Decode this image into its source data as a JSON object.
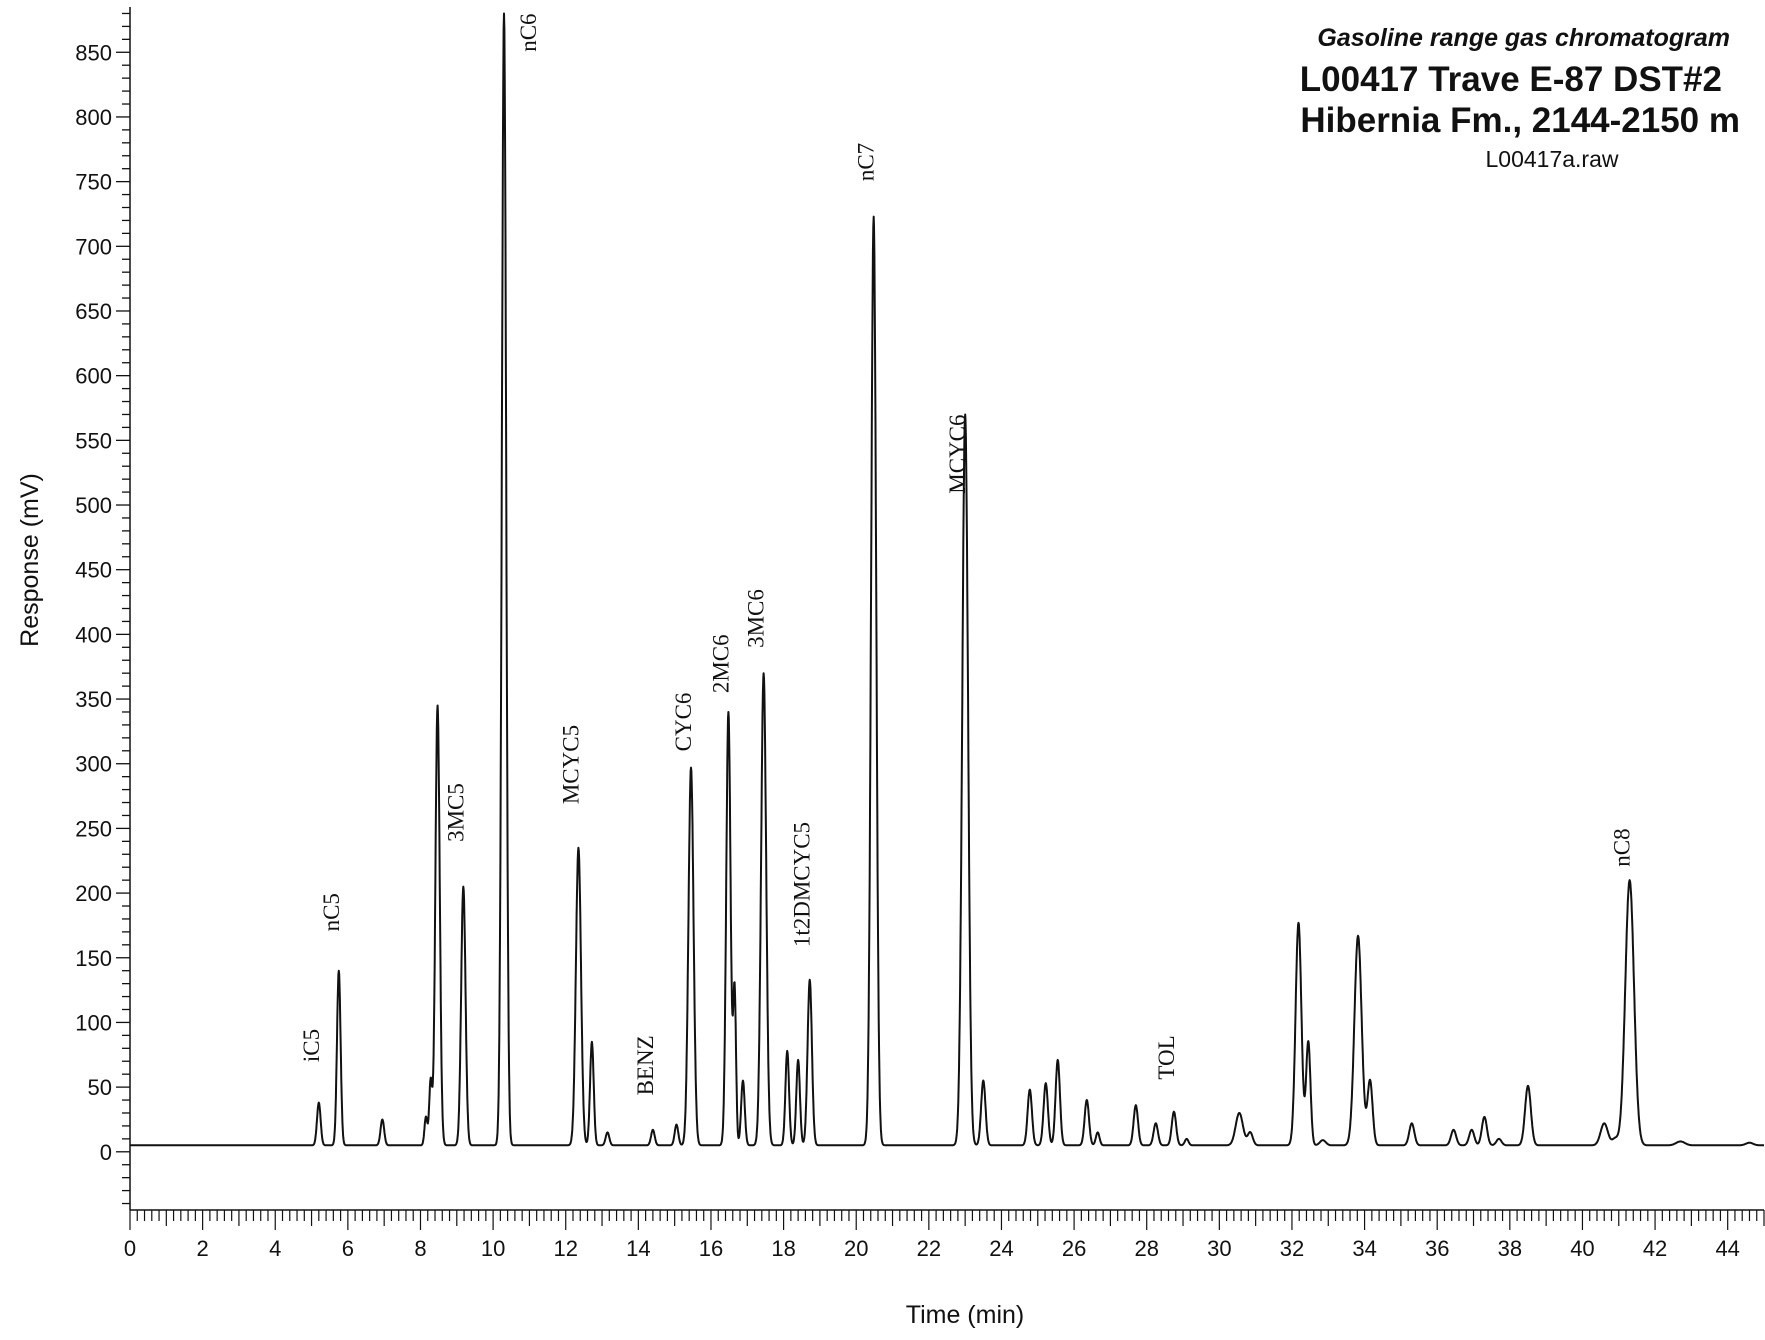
{
  "chart_data": {
    "type": "line",
    "title_lines": [
      "Gasoline range gas chromatogram",
      "L00417 Trave E-87 DST#2",
      "Hibernia Fm., 2144-2150 m"
    ],
    "subtitle": "L00417a.raw",
    "xlabel": "Time (min)",
    "ylabel": "Response (mV)",
    "xlim": [
      0,
      45
    ],
    "ylim": [
      -45,
      885
    ],
    "x_ticks": [
      0,
      2,
      4,
      6,
      8,
      10,
      12,
      14,
      16,
      18,
      20,
      22,
      24,
      26,
      28,
      30,
      32,
      34,
      36,
      38,
      40,
      42,
      44
    ],
    "y_ticks": [
      0,
      50,
      100,
      150,
      200,
      250,
      300,
      350,
      400,
      450,
      500,
      550,
      600,
      650,
      700,
      750,
      800,
      850
    ],
    "baseline": 5,
    "grid": false,
    "peaks": [
      {
        "t": 5.2,
        "h": 33,
        "w": 0.05
      },
      {
        "t": 5.75,
        "h": 135,
        "w": 0.05
      },
      {
        "t": 6.95,
        "h": 20,
        "w": 0.05
      },
      {
        "t": 8.15,
        "h": 22,
        "w": 0.04
      },
      {
        "t": 8.28,
        "h": 50,
        "w": 0.04
      },
      {
        "t": 8.47,
        "h": 340,
        "w": 0.06
      },
      {
        "t": 9.18,
        "h": 200,
        "w": 0.06
      },
      {
        "t": 10.3,
        "h": 875,
        "w": 0.06
      },
      {
        "t": 12.35,
        "h": 230,
        "w": 0.07
      },
      {
        "t": 12.72,
        "h": 80,
        "w": 0.05
      },
      {
        "t": 13.15,
        "h": 10,
        "w": 0.05
      },
      {
        "t": 14.4,
        "h": 12,
        "w": 0.05
      },
      {
        "t": 15.05,
        "h": 16,
        "w": 0.05
      },
      {
        "t": 15.45,
        "h": 292,
        "w": 0.07
      },
      {
        "t": 16.48,
        "h": 335,
        "w": 0.06
      },
      {
        "t": 16.65,
        "h": 120,
        "w": 0.04
      },
      {
        "t": 16.88,
        "h": 50,
        "w": 0.05
      },
      {
        "t": 17.45,
        "h": 365,
        "w": 0.07
      },
      {
        "t": 18.1,
        "h": 73,
        "w": 0.05
      },
      {
        "t": 18.4,
        "h": 66,
        "w": 0.05
      },
      {
        "t": 18.72,
        "h": 128,
        "w": 0.06
      },
      {
        "t": 20.48,
        "h": 718,
        "w": 0.07
      },
      {
        "t": 23.0,
        "h": 565,
        "w": 0.08
      },
      {
        "t": 23.5,
        "h": 50,
        "w": 0.06
      },
      {
        "t": 24.78,
        "h": 43,
        "w": 0.06
      },
      {
        "t": 25.22,
        "h": 48,
        "w": 0.06
      },
      {
        "t": 25.55,
        "h": 66,
        "w": 0.06
      },
      {
        "t": 26.35,
        "h": 35,
        "w": 0.06
      },
      {
        "t": 26.65,
        "h": 10,
        "w": 0.05
      },
      {
        "t": 27.7,
        "h": 31,
        "w": 0.06
      },
      {
        "t": 28.25,
        "h": 17,
        "w": 0.06
      },
      {
        "t": 28.75,
        "h": 26,
        "w": 0.06
      },
      {
        "t": 29.1,
        "h": 5,
        "w": 0.05
      },
      {
        "t": 30.55,
        "h": 25,
        "w": 0.1
      },
      {
        "t": 30.85,
        "h": 10,
        "w": 0.07
      },
      {
        "t": 32.18,
        "h": 172,
        "w": 0.08
      },
      {
        "t": 32.45,
        "h": 80,
        "w": 0.06
      },
      {
        "t": 32.85,
        "h": 4,
        "w": 0.08
      },
      {
        "t": 33.82,
        "h": 162,
        "w": 0.1
      },
      {
        "t": 34.15,
        "h": 50,
        "w": 0.07
      },
      {
        "t": 35.3,
        "h": 17,
        "w": 0.07
      },
      {
        "t": 36.45,
        "h": 12,
        "w": 0.07
      },
      {
        "t": 36.95,
        "h": 12,
        "w": 0.07
      },
      {
        "t": 37.3,
        "h": 22,
        "w": 0.07
      },
      {
        "t": 37.7,
        "h": 5,
        "w": 0.07
      },
      {
        "t": 38.5,
        "h": 46,
        "w": 0.08
      },
      {
        "t": 40.6,
        "h": 17,
        "w": 0.1
      },
      {
        "t": 40.9,
        "h": 5,
        "w": 0.08
      },
      {
        "t": 41.3,
        "h": 205,
        "w": 0.12
      },
      {
        "t": 42.7,
        "h": 3,
        "w": 0.12
      },
      {
        "t": 44.6,
        "h": 2,
        "w": 0.1
      }
    ],
    "peak_labels": [
      {
        "text": "iC5",
        "t": 5.2,
        "y_top": 95
      },
      {
        "text": "nC5",
        "t": 5.75,
        "y_top": 200
      },
      {
        "text": "3MC5",
        "t": 9.18,
        "y_top": 285
      },
      {
        "text": "nC6",
        "t": 10.3,
        "y_top": 880
      },
      {
        "text": "MCYC5",
        "t": 12.35,
        "y_top": 330
      },
      {
        "text": "BENZ",
        "t": 14.4,
        "y_top": 90
      },
      {
        "text": "CYC6",
        "t": 15.45,
        "y_top": 355
      },
      {
        "text": "2MC6",
        "t": 16.48,
        "y_top": 400
      },
      {
        "text": "3MC6",
        "t": 17.45,
        "y_top": 435
      },
      {
        "text": "1t2DMCYC5",
        "t": 18.72,
        "y_top": 255
      },
      {
        "text": "nC7",
        "t": 20.48,
        "y_top": 780
      },
      {
        "text": "MCYC6",
        "t": 23.0,
        "y_top": 570
      },
      {
        "text": "TOL",
        "t": 28.75,
        "y_top": 90
      },
      {
        "text": "nC8",
        "t": 41.3,
        "y_top": 250
      }
    ]
  }
}
